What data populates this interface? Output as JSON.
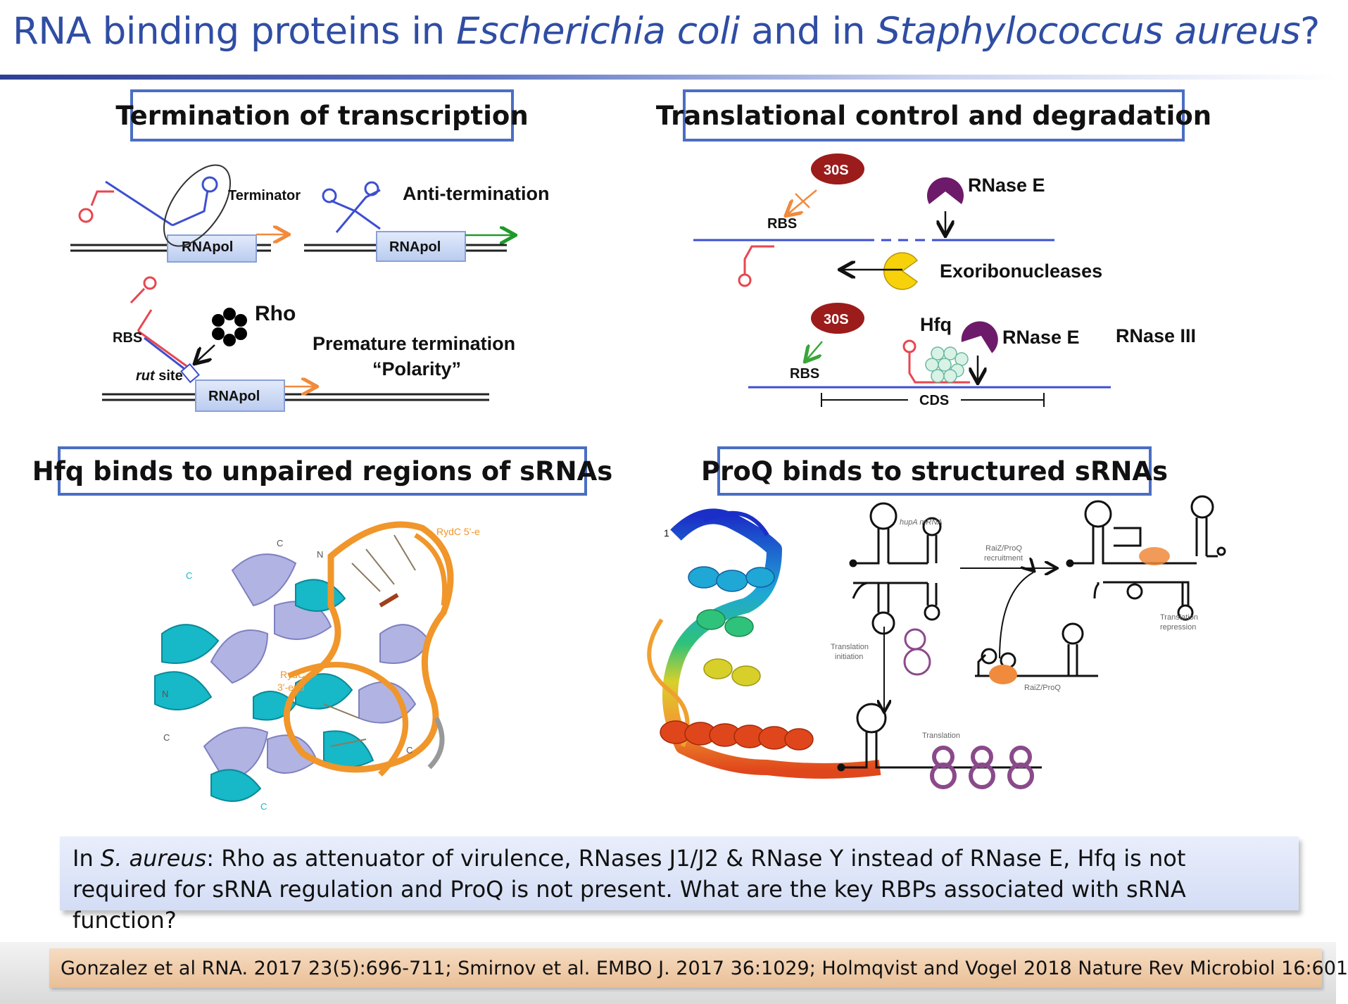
{
  "title": {
    "part1": "RNA binding proteins in ",
    "organism1": "Escherichia coli",
    "part2": " and in ",
    "organism2": "Staphylococcus aureus",
    "part3": "?"
  },
  "panels": {
    "termination": {
      "heading": "Termination of transcription",
      "terminator": "Terminator",
      "antitermination": "Anti-termination",
      "rnapol": "RNApol",
      "rho": "Rho",
      "rbs": "RBS",
      "rut": "rut",
      "site": " site",
      "premature": "Premature termination",
      "polarity": "“Polarity”"
    },
    "translation": {
      "heading": "Translational control and degradation",
      "ribosome": "30S",
      "rbs": "RBS",
      "rnase_e": "RNase E",
      "exo": "Exoribonucleases",
      "hfq": "Hfq",
      "rnase_iii": "RNase III",
      "cds": "CDS"
    },
    "hfq": {
      "heading": "Hfq binds to unpaired regions of sRNAs",
      "rydc5": "RydC 5'-e",
      "rydc3_a": "RydC",
      "rydc3_b": "3'-end",
      "termini": [
        "C",
        "N",
        "C",
        "N",
        "C",
        "C",
        "C"
      ]
    },
    "proq": {
      "heading": "ProQ binds to structured sRNAs",
      "num": "1",
      "hupa": "hupA mRNA",
      "recruit_a": "RaiZ/ProQ",
      "recruit_b": "recruitment",
      "repress_a": "Translation",
      "repress_b": "repression",
      "init_a": "Translation",
      "init_b": "initiation",
      "raiz": "RaiZ/ProQ",
      "translation": "Translation"
    }
  },
  "note": {
    "prefix": "In ",
    "organism": "S. aureus",
    "text": ": Rho as attenuator of virulence, RNases J1/J2 & RNase Y instead of RNase E, Hfq is not required for sRNA regulation and ProQ is not present. What are the key RBPs associated with sRNA function?"
  },
  "citation": "Gonzalez et al RNA. 2017 23(5):696-711; Smirnov et al. EMBO J. 2017 36:1029; Holmqvist and Vogel 2018 Nature Rev Microbiol 16:601",
  "colors": {
    "title": "#2f4da3",
    "box_border": "#4a6ec3",
    "rna_red": "#e8464f",
    "dna_blue": "#3d4fd0",
    "arrow_orange": "#f08a3c",
    "ribosome": "#9c1b1b",
    "rnase_e": "#6e1a6a",
    "exo": "#f7d20a"
  }
}
